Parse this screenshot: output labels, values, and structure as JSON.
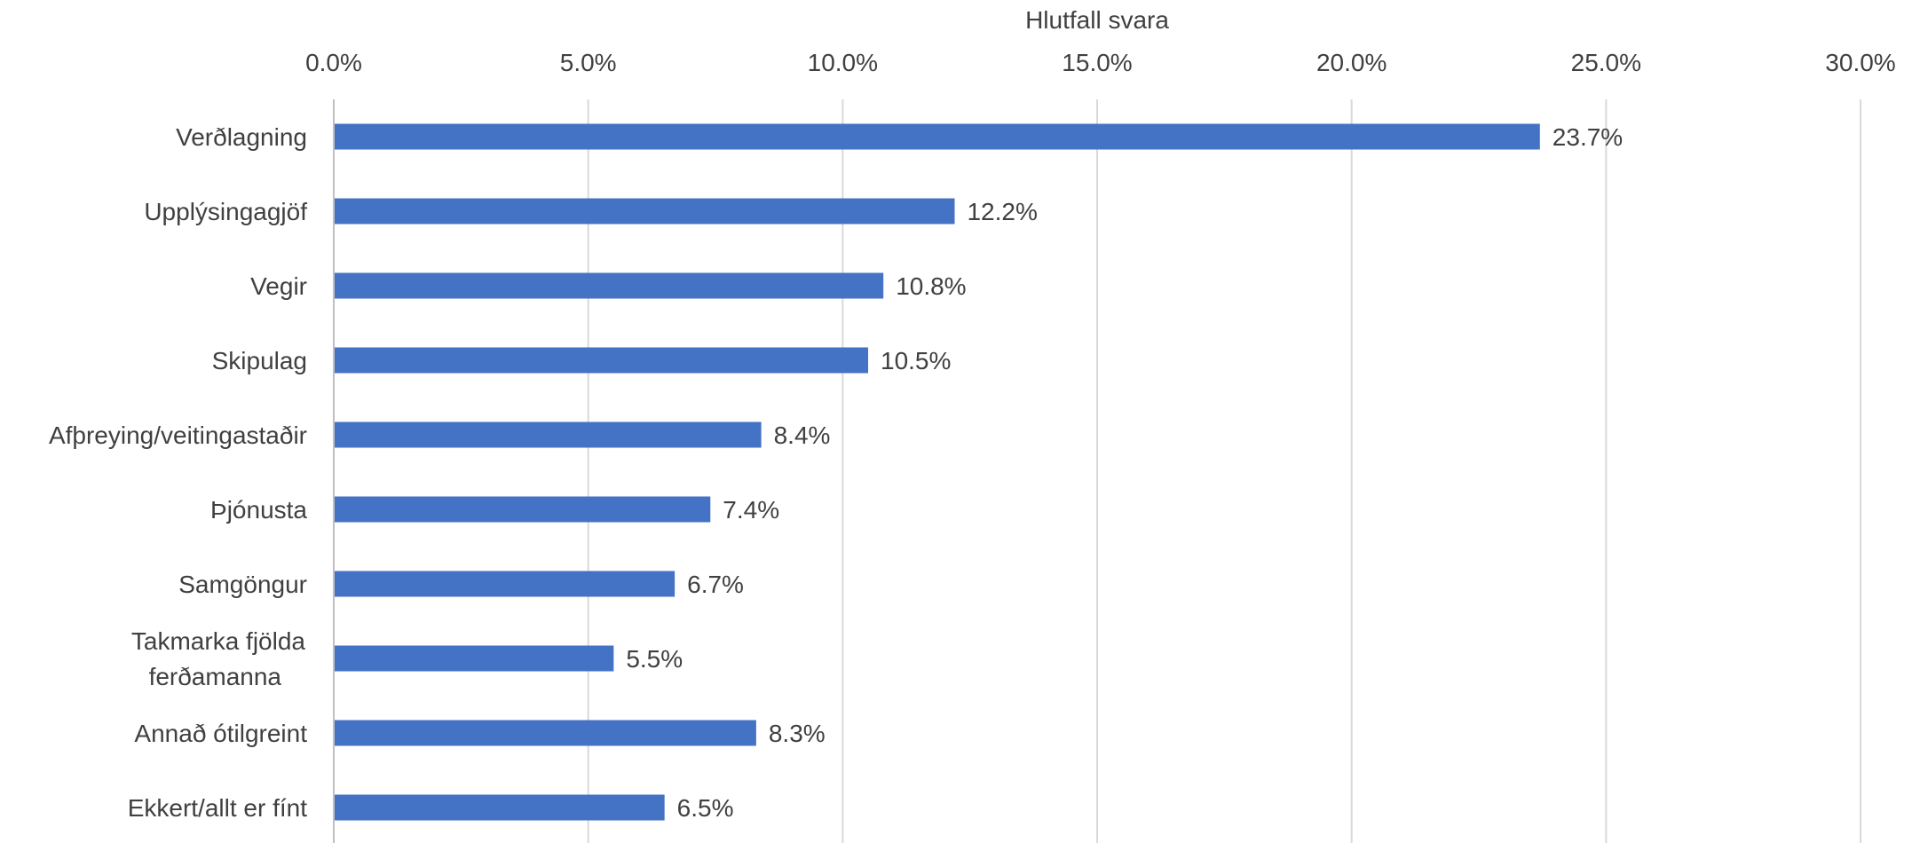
{
  "chart_data": {
    "type": "bar",
    "orientation": "horizontal",
    "xlabel": "Hlutfall svara",
    "x_axis_position": "top",
    "xlim": [
      0,
      30
    ],
    "x_ticks": [
      0,
      5,
      10,
      15,
      20,
      25,
      30
    ],
    "x_tick_labels": [
      "0.0%",
      "5.0%",
      "10.0%",
      "15.0%",
      "20.0%",
      "25.0%",
      "30.0%"
    ],
    "grid": true,
    "legend": "none",
    "bar_color": "#4472C4",
    "categories": [
      [
        "Verðlagning"
      ],
      [
        "Upplýsingagjöf"
      ],
      [
        "Vegir"
      ],
      [
        "Skipulag"
      ],
      [
        "Afþreying/veitingastaðir"
      ],
      [
        "Þjónusta"
      ],
      [
        "Samgöngur"
      ],
      [
        "Takmarka fjölda",
        "ferðamanna"
      ],
      [
        "Annað ótilgreint"
      ],
      [
        "Ekkert/allt er fínt"
      ]
    ],
    "values": [
      23.7,
      12.2,
      10.8,
      10.5,
      8.4,
      7.4,
      6.7,
      5.5,
      8.3,
      6.5
    ],
    "data_labels": [
      "23.7%",
      "12.2%",
      "10.8%",
      "10.5%",
      "8.4%",
      "7.4%",
      "6.7%",
      "5.5%",
      "8.3%",
      "6.5%"
    ]
  }
}
